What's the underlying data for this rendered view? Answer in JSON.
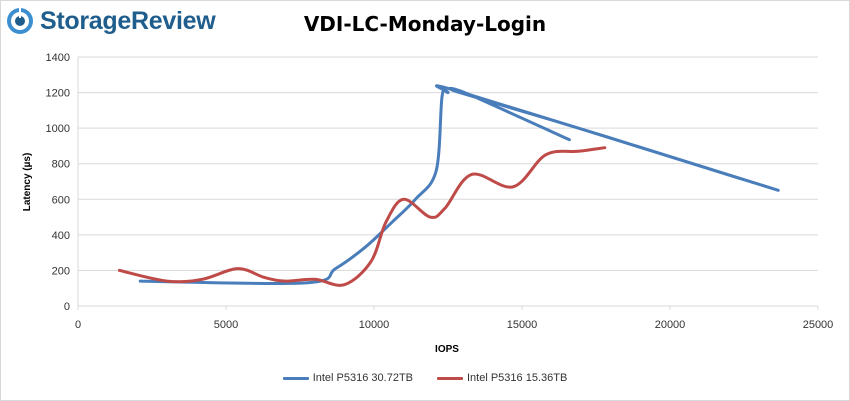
{
  "header": {
    "logo_text": "StorageReview",
    "logo_icon": "storagereview-disc-logo"
  },
  "colors": {
    "series1": "#4a7ebb",
    "series2": "#be4b48",
    "grid": "#d9d9d9",
    "logo": "#1f5e8c"
  },
  "chart_data": {
    "type": "line",
    "title": "VDI-LC-Monday-Login",
    "xlabel": "IOPS",
    "ylabel": "Latency (µs)",
    "xlim": [
      0,
      25000
    ],
    "ylim": [
      0,
      1400
    ],
    "xticks": [
      0,
      5000,
      10000,
      15000,
      20000,
      25000
    ],
    "yticks": [
      0,
      200,
      400,
      600,
      800,
      1000,
      1200,
      1400
    ],
    "grid": true,
    "legend_position": "bottom",
    "series": [
      {
        "name": "Intel P5316 30.72TB",
        "color": "#4a7ebb",
        "points": [
          [
            2100,
            140
          ],
          [
            7700,
            130
          ],
          [
            8700,
            210
          ],
          [
            9700,
            330
          ],
          [
            10600,
            470
          ],
          [
            11400,
            600
          ],
          [
            12100,
            760
          ],
          [
            12300,
            1180
          ],
          [
            12500,
            1200
          ],
          [
            13000,
            1200
          ],
          [
            22900,
            690
          ],
          [
            22300,
            720
          ],
          [
            16900,
            1000
          ],
          [
            12900,
            1200
          ],
          [
            13200,
            1190
          ],
          [
            16600,
            935
          ]
        ]
      },
      {
        "name": "Intel P5316 15.36TB",
        "color": "#be4b48",
        "points": [
          [
            1400,
            200
          ],
          [
            3000,
            140
          ],
          [
            4200,
            150
          ],
          [
            5400,
            210
          ],
          [
            6300,
            160
          ],
          [
            7000,
            140
          ],
          [
            8000,
            150
          ],
          [
            9000,
            120
          ],
          [
            9900,
            250
          ],
          [
            10400,
            470
          ],
          [
            11000,
            600
          ],
          [
            11900,
            500
          ],
          [
            12400,
            550
          ],
          [
            13300,
            740
          ],
          [
            14700,
            670
          ],
          [
            15800,
            850
          ],
          [
            16900,
            870
          ],
          [
            17800,
            890
          ]
        ]
      }
    ]
  }
}
